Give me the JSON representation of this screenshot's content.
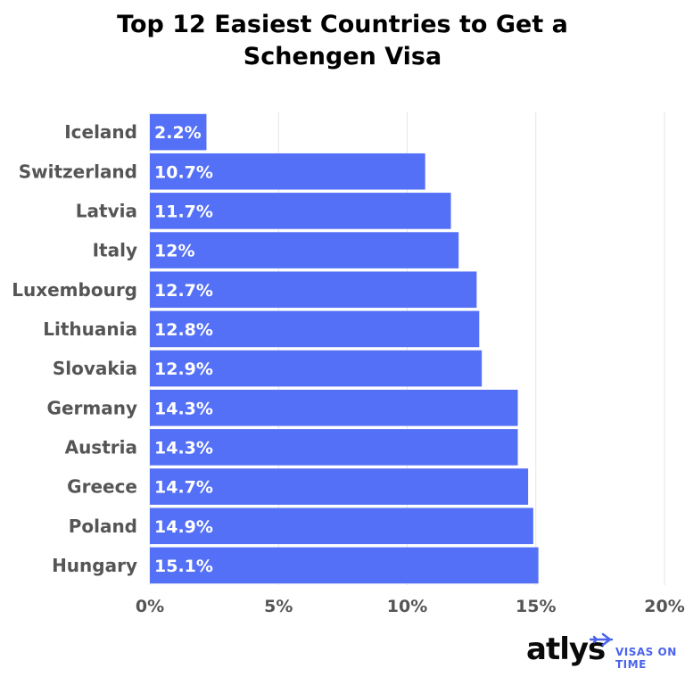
{
  "chart_data": {
    "type": "bar",
    "orientation": "horizontal",
    "title": "Top 12 Easiest Countries to Get a\nSchengen Visa",
    "categories": [
      "Iceland",
      "Switzerland",
      "Latvia",
      "Italy",
      "Luxembourg",
      "Lithuania",
      "Slovakia",
      "Germany",
      "Austria",
      "Greece",
      "Poland",
      "Hungary"
    ],
    "values": [
      2.2,
      10.7,
      11.7,
      12,
      12.7,
      12.8,
      12.9,
      14.3,
      14.3,
      14.7,
      14.9,
      15.1
    ],
    "data_labels": [
      "2.2%",
      "10.7%",
      "11.7%",
      "12%",
      "12.7%",
      "12.8%",
      "12.9%",
      "14.3%",
      "14.3%",
      "14.7%",
      "14.9%",
      "15.1%"
    ],
    "xlim": [
      0,
      20
    ],
    "xticks": [
      0,
      5,
      10,
      15,
      20
    ],
    "xtick_labels": [
      "0%",
      "5%",
      "10%",
      "15%",
      "20%"
    ],
    "xlabel": "",
    "ylabel": "",
    "grid": true,
    "bar_color": "#5470f6",
    "grid_color": "#e6e6e6"
  },
  "brand": {
    "name": "atlys",
    "tagline_line1": "VISAS ON",
    "tagline_line2": "TIME",
    "icon": "airplane-icon"
  }
}
